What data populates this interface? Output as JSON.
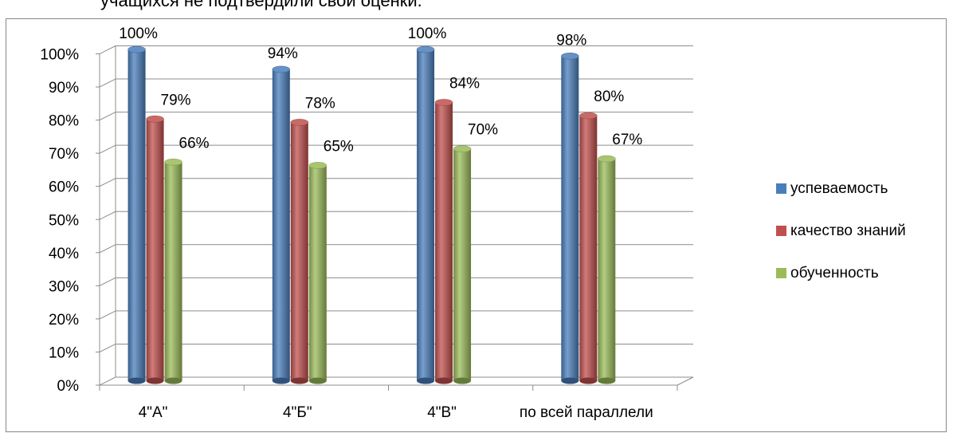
{
  "header_text": "учащихся не подтвердили свои оценки.",
  "chart_data": {
    "type": "bar",
    "categories": [
      "4\"А\"",
      "4\"Б\"",
      "4\"В\"",
      "по всей параллели"
    ],
    "series": [
      {
        "name": "успеваемость",
        "values": [
          100,
          94,
          100,
          98
        ],
        "labels": [
          "100%",
          "94%",
          "100%",
          "98%"
        ],
        "color": "#4a7ebb"
      },
      {
        "name": "качество знаний",
        "values": [
          79,
          78,
          84,
          80
        ],
        "labels": [
          "79%",
          "78%",
          "84%",
          "80%"
        ],
        "color": "#c0504d"
      },
      {
        "name": "обученность",
        "values": [
          66,
          65,
          70,
          67
        ],
        "labels": [
          "66%",
          "65%",
          "70%",
          "67%"
        ],
        "color": "#9bbb59"
      }
    ],
    "yticks": [
      "0%",
      "10%",
      "20%",
      "30%",
      "40%",
      "50%",
      "60%",
      "70%",
      "80%",
      "90%",
      "100%"
    ],
    "ylim": [
      0,
      100
    ],
    "grid": true,
    "legend_position": "right"
  }
}
